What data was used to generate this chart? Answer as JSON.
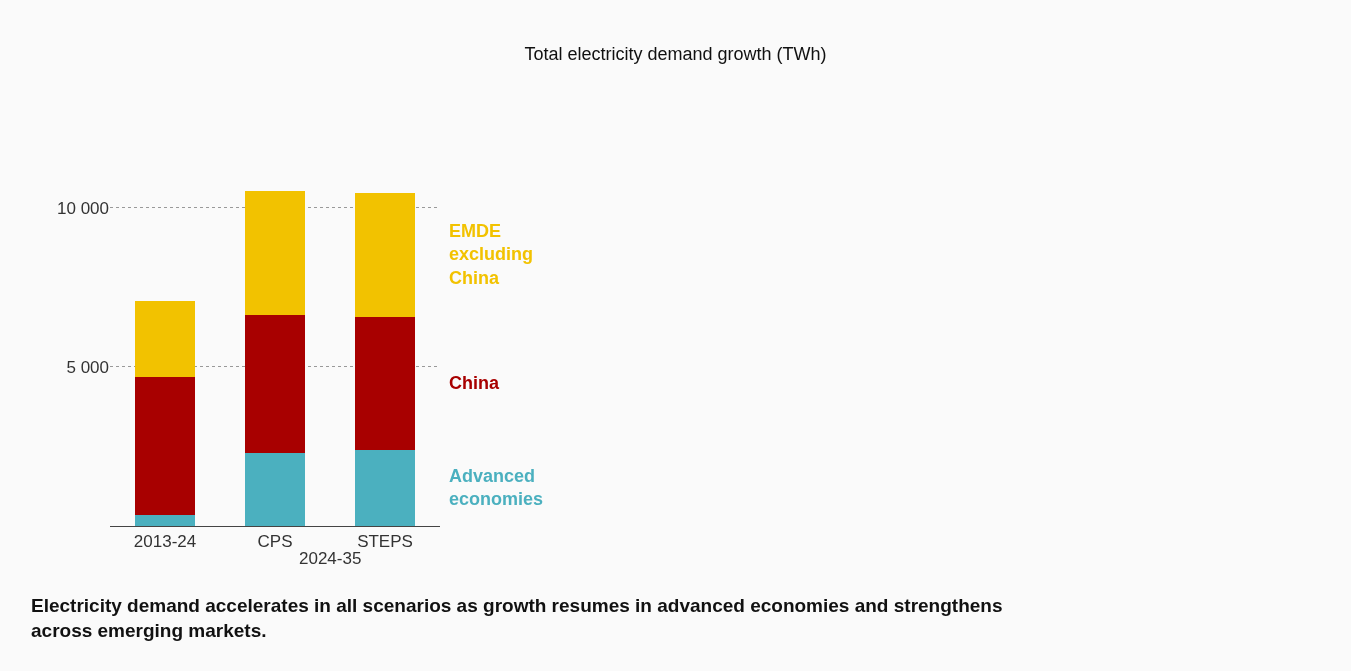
{
  "chart_data": {
    "type": "bar",
    "stacked": true,
    "title": "Total electricity demand growth (TWh)",
    "categories": [
      "2013-24",
      "CPS",
      "STEPS"
    ],
    "series": [
      {
        "name": "Advanced economies",
        "color": "#4bb0bf",
        "values": [
          350,
          2300,
          2390
        ]
      },
      {
        "name": "China",
        "color": "#a80000",
        "values": [
          4340,
          4340,
          4180
        ]
      },
      {
        "name": "EMDE excluding China",
        "color": "#f2c200",
        "values": [
          2390,
          3890,
          3900
        ]
      }
    ],
    "ylim": [
      0,
      10530
    ],
    "yticks": [
      {
        "value": 5000,
        "label": "5 000"
      },
      {
        "value": 10000,
        "label": "10 000"
      }
    ],
    "grid": "y",
    "legend": false,
    "annotations": [
      "2024-35",
      "Electricity demand accelerates in all scenarios as growth resumes in advanced economies and strengthens across emerging markets."
    ]
  }
}
